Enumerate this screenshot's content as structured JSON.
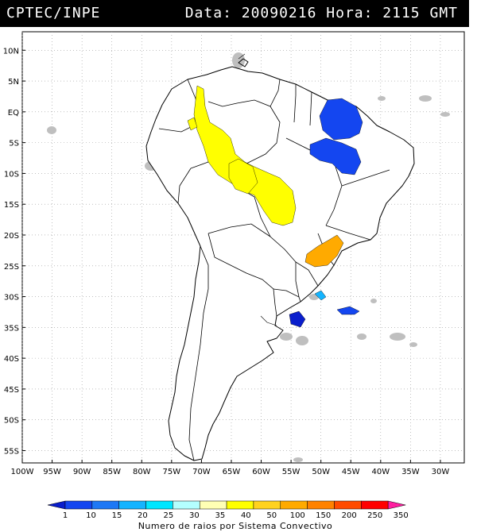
{
  "header": {
    "source": "CPTEC/INPE",
    "datetime": "Data: 20090216 Hora: 2115 GMT"
  },
  "map": {
    "lat_labels": [
      "10N",
      "5N",
      "EQ",
      "5S",
      "10S",
      "15S",
      "20S",
      "25S",
      "30S",
      "35S",
      "40S",
      "45S",
      "50S",
      "55S"
    ],
    "lat_values": [
      10,
      5,
      0,
      -5,
      -10,
      -15,
      -20,
      -25,
      -30,
      -35,
      -40,
      -45,
      -50,
      -55
    ],
    "lon_labels": [
      "100W",
      "95W",
      "90W",
      "85W",
      "80W",
      "75W",
      "70W",
      "65W",
      "60W",
      "55W",
      "50W",
      "45W",
      "40W",
      "35W",
      "30W"
    ],
    "lon_values": [
      -100,
      -95,
      -90,
      -85,
      -80,
      -75,
      -70,
      -65,
      -60,
      -55,
      -50,
      -45,
      -40,
      -35,
      -30
    ],
    "lon_range": [
      -100,
      -26
    ],
    "lat_range": [
      -57,
      13
    ],
    "grid": "dotted",
    "land_color": "#ffffff",
    "cloud_color": "#bfbfbf"
  },
  "colorbar": {
    "labels": [
      "1",
      "10",
      "15",
      "20",
      "25",
      "30",
      "35",
      "40",
      "50",
      "100",
      "150",
      "200",
      "250",
      "350"
    ],
    "colors": [
      "#0a1ecc",
      "#1446f0",
      "#1e78f5",
      "#14b4ff",
      "#00e6ff",
      "#b4ffff",
      "#ffffb4",
      "#ffff00",
      "#ffd21e",
      "#ffaa00",
      "#ff8200",
      "#ff4b00",
      "#ff0000",
      "#ff1ea0"
    ],
    "title": "Numero de raios por Sistema Convectivo"
  }
}
